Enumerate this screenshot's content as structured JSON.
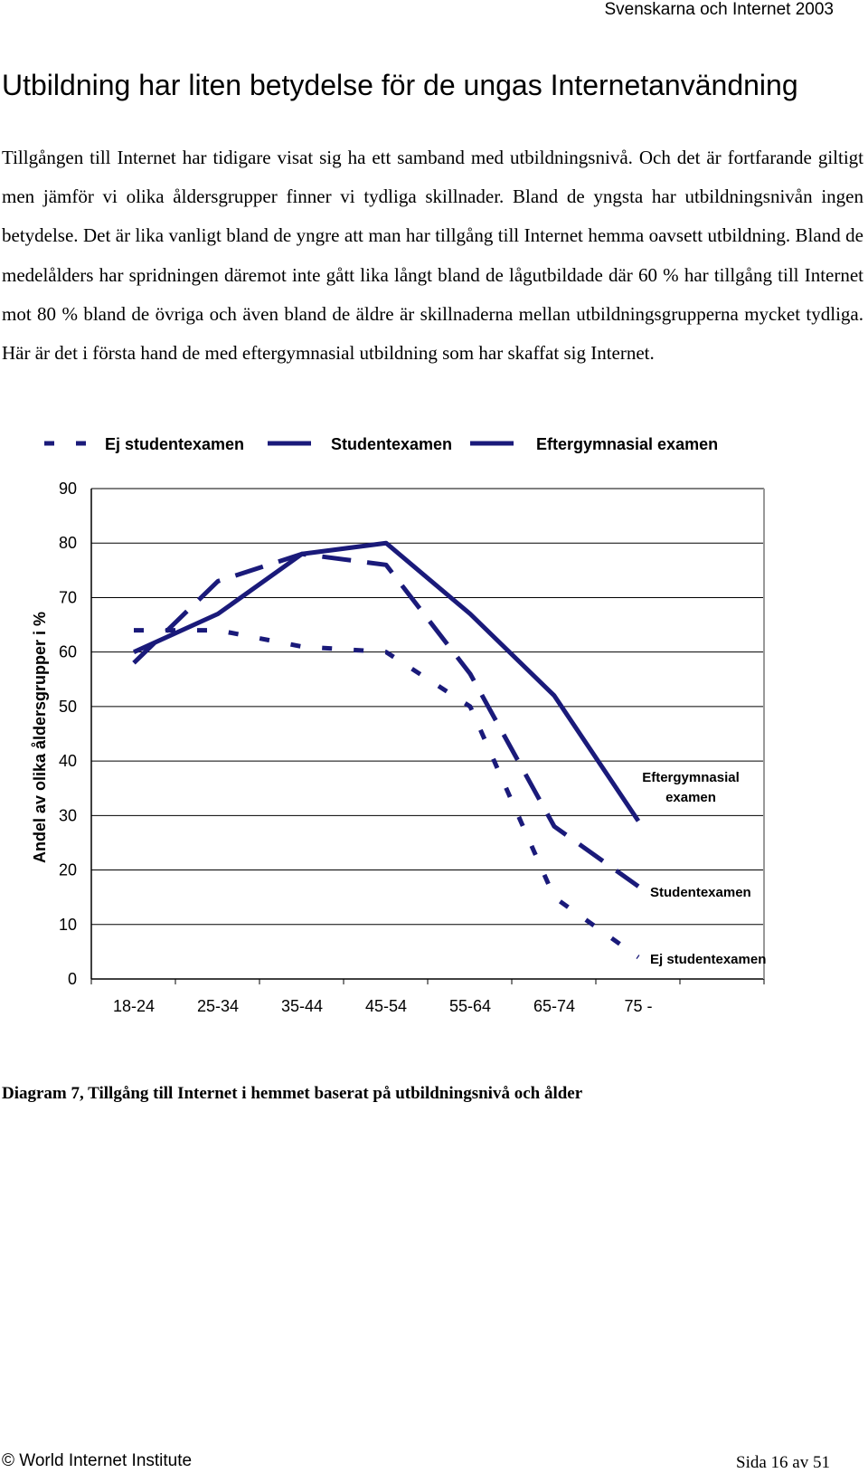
{
  "header": {
    "running_title": "Svenskarna och Internet 2003"
  },
  "section": {
    "title": "Utbildning har liten betydelse för de ungas Internetanvändning",
    "paragraph": "Tillgången till Internet har tidigare visat sig ha ett samband med utbildningsnivå. Och det är fortfarande giltigt men jämför vi olika åldersgrupper finner vi tydliga skillnader. Bland de yngsta har utbildningsnivån ingen betydelse. Det är lika vanligt bland de yngre att man har tillgång till Internet hemma oavsett utbildning. Bland de medelålders har spridningen däremot inte gått lika långt bland de lågutbildade där 60 % har tillgång till Internet mot 80 % bland de övriga och även bland de äldre är skillnaderna mellan utbildningsgrupperna mycket tydliga. Här är det i första hand de med eftergymnasial utbildning som har skaffat sig Internet."
  },
  "chart_data": {
    "type": "line",
    "ylabel": "Andel av olika åldersgrupper i %",
    "ylim": [
      0,
      90
    ],
    "yticks": [
      0,
      10,
      20,
      30,
      40,
      50,
      60,
      70,
      80,
      90
    ],
    "categories": [
      "18-24",
      "25-34",
      "35-44",
      "45-54",
      "55-64",
      "65-74",
      "75 -"
    ],
    "grid": true,
    "legend_position": "top",
    "color": "#1a1a7a",
    "series": [
      {
        "name": "Ej studentexamen",
        "style": "short-dash",
        "values": [
          64,
          64,
          61,
          60,
          50,
          15,
          4
        ],
        "end_label": "Ej studentexamen"
      },
      {
        "name": "Studentexamen",
        "style": "long-dash",
        "values": [
          58,
          73,
          78,
          76,
          56,
          28,
          17
        ],
        "end_label": "Studentexamen"
      },
      {
        "name": "Eftergymnasial examen",
        "style": "solid",
        "values": [
          60,
          67,
          78,
          80,
          67,
          52,
          29
        ],
        "end_label_lines": [
          "Eftergymnasial",
          "examen"
        ]
      }
    ]
  },
  "caption": "Diagram 7, Tillgång till Internet i hemmet baserat på utbildningsnivå och ålder",
  "footer": {
    "left": "© World Internet Institute",
    "right": "Sida 16 av 51"
  }
}
